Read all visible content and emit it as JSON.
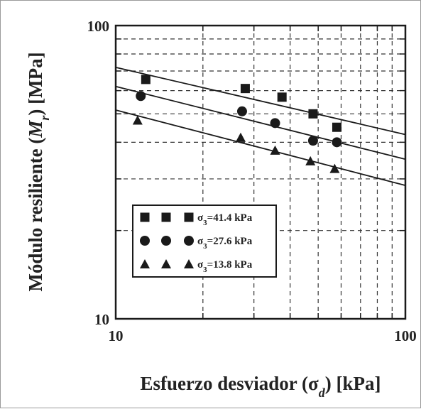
{
  "chart_data": {
    "type": "scatter",
    "x_scale": "log",
    "y_scale": "log",
    "xlim": [
      10,
      100
    ],
    "ylim": [
      10,
      100
    ],
    "grid": true,
    "xlabel": {
      "main": "Esfuerzo desviador (",
      "sym": "σ",
      "sub": "d",
      "tail": ") [kPa]"
    },
    "ylabel": {
      "main": "Módulo resiliente (",
      "sym": "M",
      "sub": "r",
      "tail": ") [MPa]"
    },
    "x_ticks": [
      {
        "value": 10,
        "label": "10"
      },
      {
        "value": 100,
        "label": "100"
      }
    ],
    "y_ticks": [
      {
        "value": 10,
        "label": "10"
      },
      {
        "value": 100,
        "label": "100"
      }
    ],
    "legend_position": "lower-left",
    "series": [
      {
        "name": "=41.4 kPa",
        "label_sym": "σ",
        "label_sub": "3",
        "marker": "square",
        "points": [
          [
            12.7,
            65.5
          ],
          [
            28,
            61
          ],
          [
            37.5,
            57
          ],
          [
            48,
            50
          ],
          [
            58,
            45
          ]
        ],
        "fit": [
          [
            10,
            72
          ],
          [
            100,
            42.5
          ]
        ]
      },
      {
        "name": "=27.6 kPa",
        "label_sym": "σ",
        "label_sub": "3",
        "marker": "circle",
        "points": [
          [
            12.2,
            57.5
          ],
          [
            27.3,
            51
          ],
          [
            35.5,
            46.5
          ],
          [
            48,
            40.5
          ],
          [
            58,
            40
          ]
        ],
        "fit": [
          [
            10,
            62
          ],
          [
            100,
            35
          ]
        ]
      },
      {
        "name": "=13.8 kPa",
        "label_sym": "σ",
        "label_sub": "3",
        "marker": "triangle",
        "points": [
          [
            11.9,
            47.5
          ],
          [
            27,
            41.5
          ],
          [
            35.5,
            37.5
          ],
          [
            47,
            34.5
          ],
          [
            57,
            32.5
          ]
        ],
        "fit": [
          [
            10,
            51.5
          ],
          [
            100,
            28.5
          ]
        ]
      }
    ]
  }
}
